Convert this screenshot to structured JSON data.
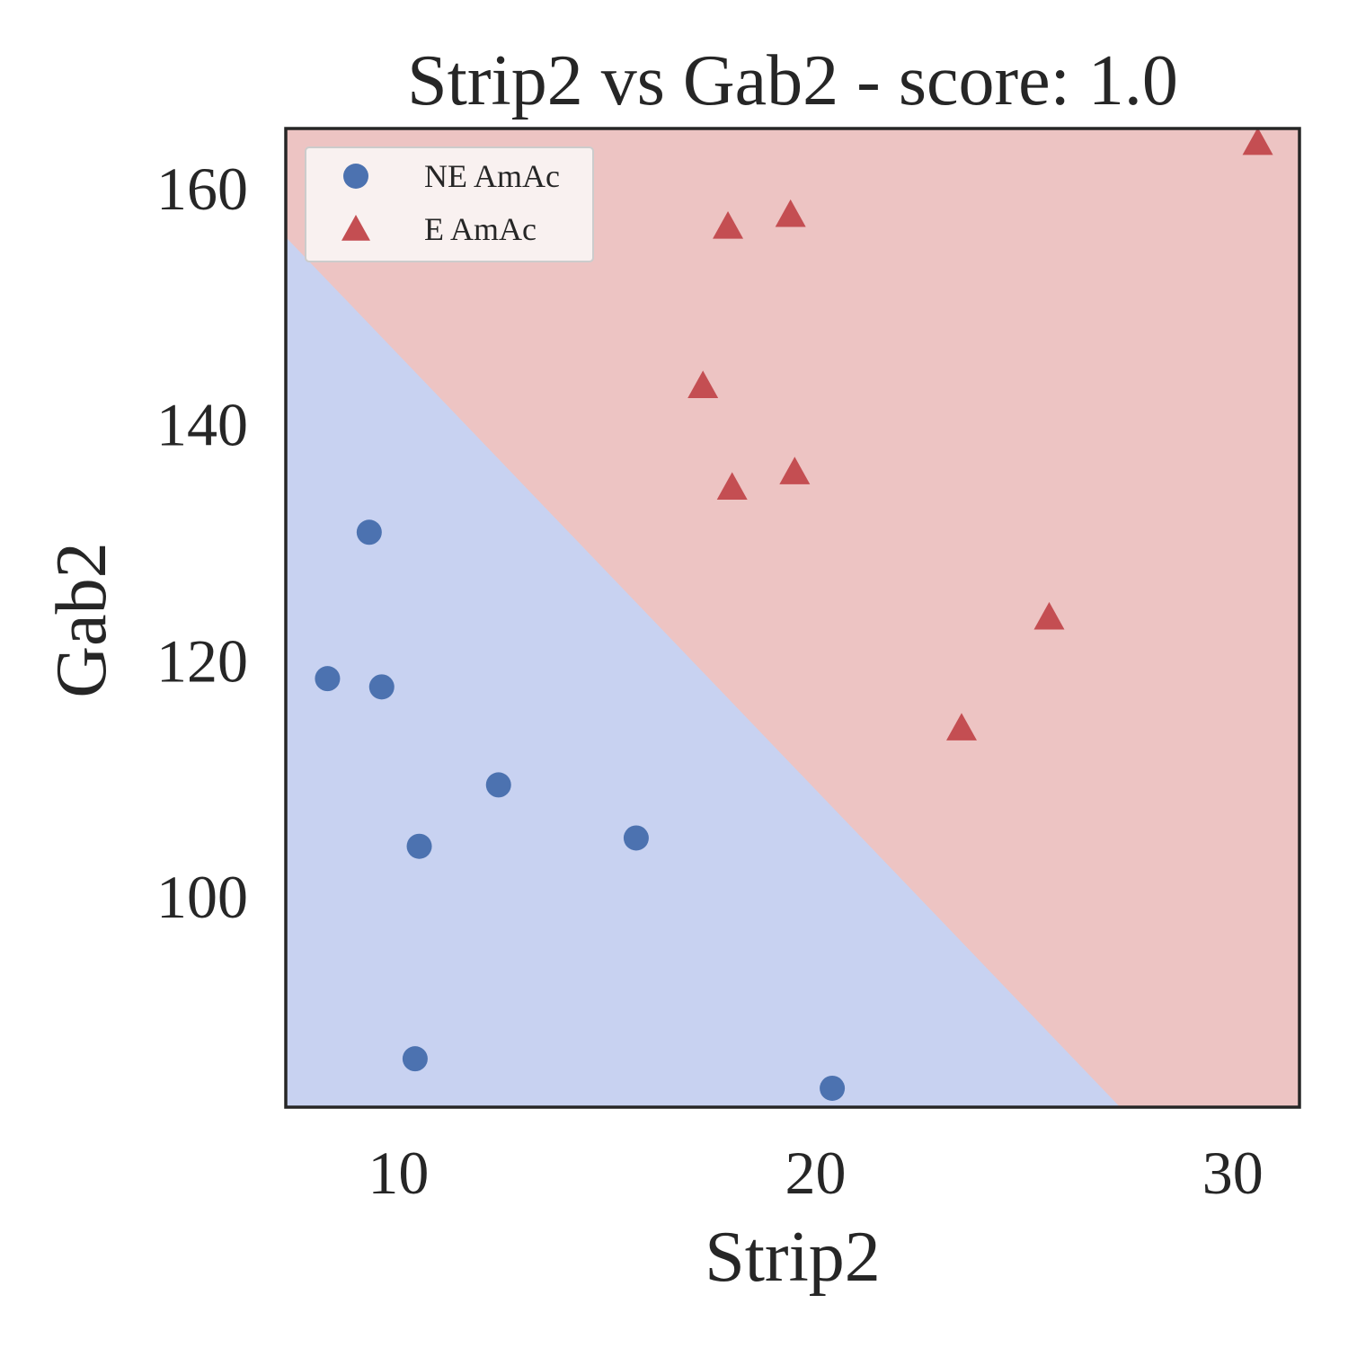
{
  "chart_data": {
    "type": "scatter",
    "title": "Strip2 vs Gab2 - score: 1.0",
    "xlabel": "Strip2",
    "ylabel": "Gab2",
    "xlim": [
      7.3,
      31.6
    ],
    "ylim": [
      82.2,
      165.1
    ],
    "x_ticks": [
      10,
      20,
      30
    ],
    "y_ticks": [
      100,
      120,
      140,
      160
    ],
    "grid": false,
    "legend_position": "top-left",
    "decision_boundary": {
      "points": [
        [
          7.3,
          155.9
        ],
        [
          27.3,
          82.2
        ]
      ],
      "class_below": "NE AmAc",
      "class_above": "E AmAc"
    },
    "region_colors": {
      "NE AmAc": "#c8d2f1",
      "E AmAc": "#edc4c3"
    },
    "series": [
      {
        "name": "NE AmAc",
        "marker": "circle",
        "color": "#4c72b0",
        "points": [
          [
            9.3,
            130.9
          ],
          [
            8.3,
            118.5
          ],
          [
            9.6,
            117.8
          ],
          [
            12.4,
            109.5
          ],
          [
            10.5,
            104.3
          ],
          [
            15.7,
            105.0
          ],
          [
            10.4,
            86.3
          ],
          [
            20.4,
            83.8
          ]
        ]
      },
      {
        "name": "E AmAc",
        "marker": "triangle",
        "color": "#c44e52",
        "points": [
          [
            30.6,
            163.9
          ],
          [
            17.9,
            156.8
          ],
          [
            19.4,
            157.8
          ],
          [
            17.3,
            143.3
          ],
          [
            18.0,
            134.7
          ],
          [
            19.5,
            136.0
          ],
          [
            25.6,
            123.7
          ],
          [
            23.5,
            114.3
          ]
        ]
      }
    ]
  }
}
